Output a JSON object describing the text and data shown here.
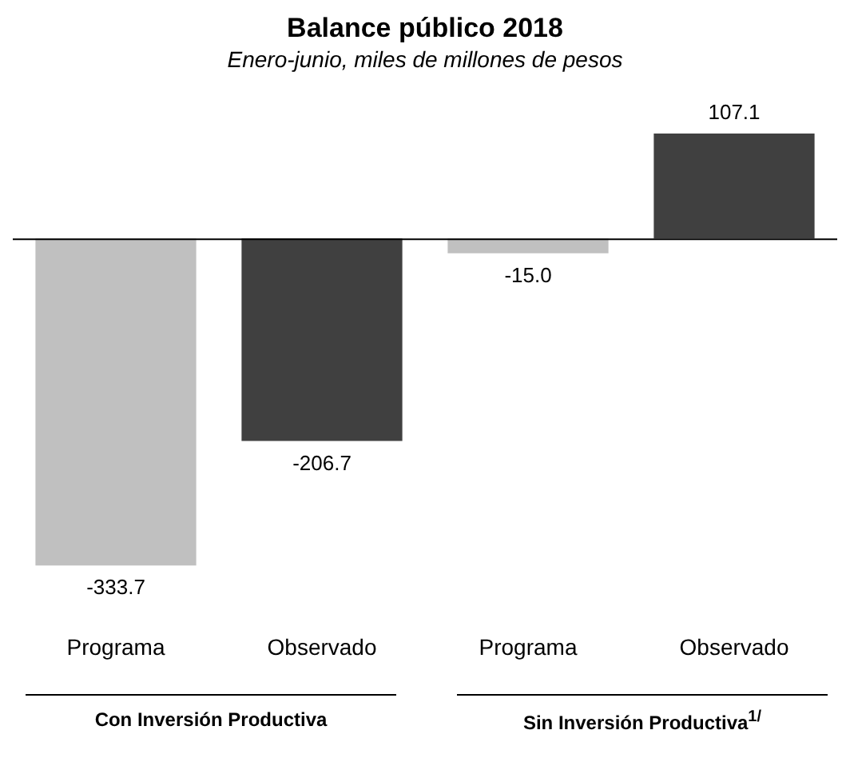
{
  "chart_data": {
    "type": "bar",
    "title": "Balance público 2018",
    "subtitle": "Enero-junio, miles de millones de pesos",
    "categories": [
      "Programa",
      "Observado",
      "Programa",
      "Observado"
    ],
    "values": [
      -333.7,
      -206.7,
      -15.0,
      107.1
    ],
    "colors": [
      "#c0c0c0",
      "#404040",
      "#c0c0c0",
      "#404040"
    ],
    "value_labels": [
      "-333.7",
      "-206.7",
      "-15.0",
      "107.1"
    ],
    "grid": false,
    "legend": false,
    "annotations": [
      "Con Inversión Productiva",
      "Sin Inversión Productiva$^{1/}$"
    ]
  }
}
